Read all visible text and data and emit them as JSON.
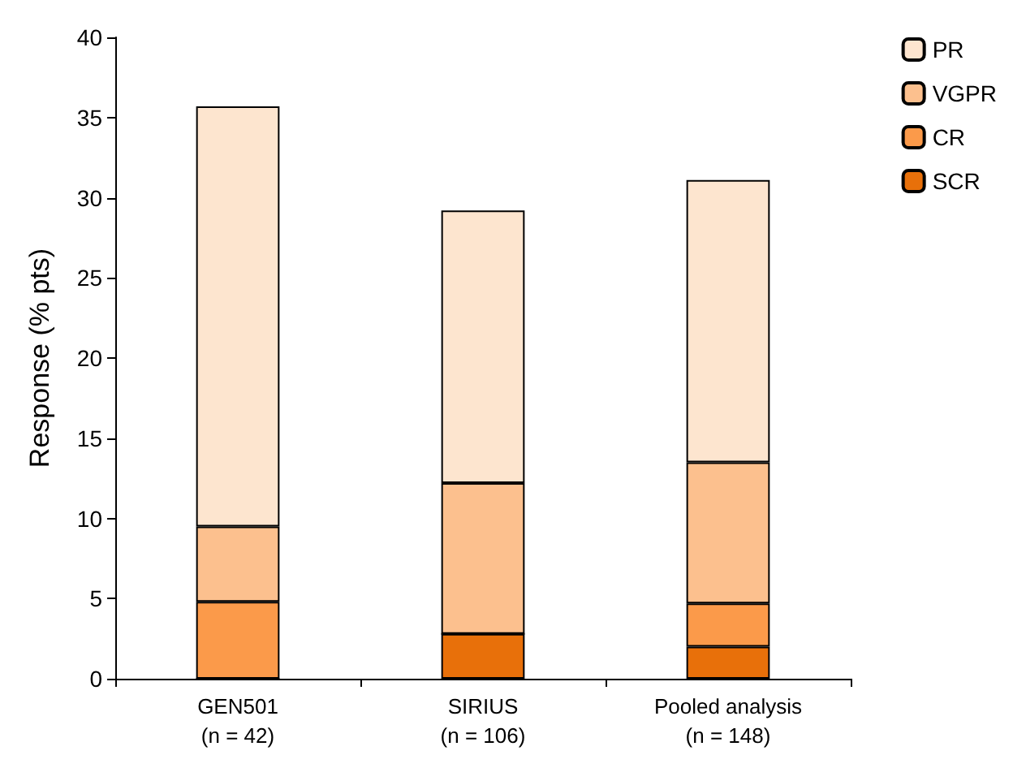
{
  "chart_data": {
    "type": "bar",
    "stacked": true,
    "ylabel": "Response (% pts)",
    "categories": [
      "GEN501\n(n = 42)",
      "SIRIUS\n(n = 106)",
      "Pooled analysis\n(n = 148)"
    ],
    "series": [
      {
        "name": "SCR",
        "color": "#e8700a",
        "values": [
          0,
          2.8,
          2.0
        ]
      },
      {
        "name": "CR",
        "color": "#fb9a4a",
        "values": [
          4.8,
          0,
          2.7
        ]
      },
      {
        "name": "VGPR",
        "color": "#fcc08e",
        "values": [
          4.7,
          9.4,
          8.8
        ]
      },
      {
        "name": "PR",
        "color": "#fde5cf",
        "values": [
          26.2,
          17.0,
          17.6
        ]
      }
    ],
    "ylim": [
      0,
      40
    ],
    "yticks": [
      0,
      5,
      10,
      15,
      20,
      25,
      30,
      35,
      40
    ],
    "grid": false,
    "legend": "top right"
  }
}
